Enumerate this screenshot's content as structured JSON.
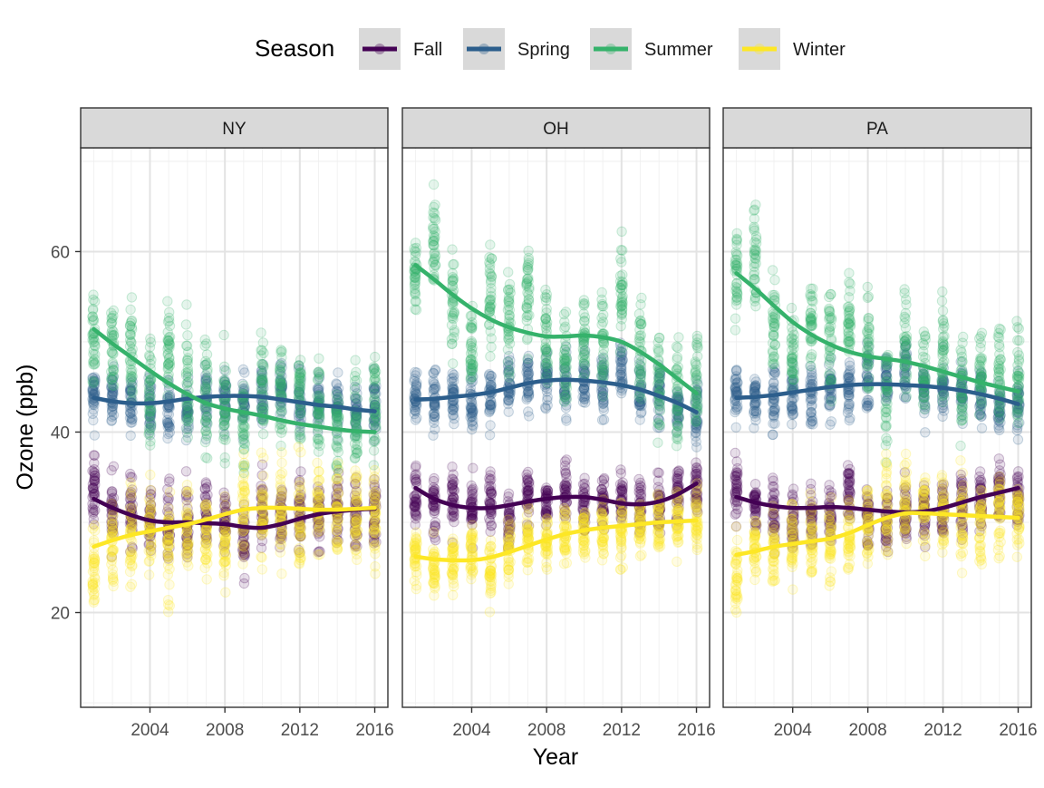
{
  "chart_data": {
    "type": "scatter",
    "facet_by": "State",
    "facets": [
      "NY",
      "OH",
      "PA"
    ],
    "xlabel": "Year",
    "ylabel": "Ozone (ppb)",
    "xlim": [
      2000.3,
      2016.7
    ],
    "ylim": [
      9.5,
      71.5
    ],
    "x_ticks": [
      2004,
      2008,
      2012,
      2016
    ],
    "y_ticks": [
      20,
      40,
      60
    ],
    "grid": true,
    "legend": {
      "title": "Season",
      "position": "top",
      "entries": [
        "Fall",
        "Spring",
        "Summer",
        "Winter"
      ]
    },
    "colors": {
      "Fall": "#440154",
      "Spring": "#2c5e8c",
      "Summer": "#35b26b",
      "Winter": "#fde725"
    },
    "series": [
      {
        "facet": "NY",
        "name": "Fall",
        "x": [
          2001,
          2002,
          2003,
          2004,
          2005,
          2006,
          2007,
          2008,
          2009,
          2010,
          2011,
          2012,
          2013,
          2014,
          2015,
          2016
        ],
        "mean": [
          33.5,
          31.5,
          31.0,
          30.0,
          30.5,
          30.0,
          31.0,
          30.5,
          28.0,
          30.5,
          30.0,
          31.5,
          30.5,
          31.0,
          31.0,
          31.0
        ],
        "spread": 3.5,
        "smooth": [
          32.6,
          31.6,
          30.8,
          30.2,
          30.0,
          30.0,
          29.9,
          29.8,
          29.5,
          29.4,
          29.8,
          30.4,
          30.9,
          31.2,
          31.4,
          31.5
        ]
      },
      {
        "facet": "NY",
        "name": "Spring",
        "x": [
          2001,
          2002,
          2003,
          2004,
          2005,
          2006,
          2007,
          2008,
          2009,
          2010,
          2011,
          2012,
          2013,
          2014,
          2015,
          2016
        ],
        "mean": [
          44.0,
          43.5,
          43.5,
          42.5,
          43.0,
          42.0,
          44.0,
          43.5,
          43.5,
          44.0,
          44.5,
          43.5,
          43.0,
          42.5,
          42.0,
          42.5
        ],
        "spread": 3.0,
        "smooth": [
          43.8,
          43.4,
          43.2,
          43.2,
          43.4,
          43.7,
          43.9,
          44.0,
          44.0,
          43.9,
          43.6,
          43.3,
          43.0,
          42.8,
          42.5,
          42.3
        ]
      },
      {
        "facet": "NY",
        "name": "Summer",
        "x": [
          2001,
          2002,
          2003,
          2004,
          2005,
          2006,
          2007,
          2008,
          2009,
          2010,
          2011,
          2012,
          2013,
          2014,
          2015,
          2016
        ],
        "mean": [
          50.0,
          50.0,
          48.5,
          44.0,
          49.0,
          46.0,
          44.0,
          43.0,
          41.0,
          45.0,
          44.0,
          44.0,
          43.0,
          40.0,
          42.0,
          43.0
        ],
        "spread": 5.0,
        "smooth": [
          51.4,
          49.8,
          48.3,
          46.8,
          45.4,
          44.2,
          43.2,
          42.6,
          42.2,
          41.8,
          41.3,
          40.9,
          40.6,
          40.3,
          40.1,
          40.0
        ]
      },
      {
        "facet": "NY",
        "name": "Winter",
        "x": [
          2001,
          2002,
          2003,
          2004,
          2005,
          2006,
          2007,
          2008,
          2009,
          2010,
          2011,
          2012,
          2013,
          2014,
          2015,
          2016
        ],
        "mean": [
          25.0,
          27.0,
          28.5,
          29.0,
          27.0,
          29.0,
          28.5,
          28.5,
          32.0,
          31.0,
          31.0,
          30.5,
          31.5,
          31.0,
          31.5,
          31.0
        ],
        "spread": 5.0,
        "smooth": [
          27.3,
          28.0,
          28.6,
          29.0,
          29.4,
          29.8,
          30.3,
          30.9,
          31.4,
          31.6,
          31.6,
          31.5,
          31.4,
          31.4,
          31.5,
          31.6
        ]
      },
      {
        "facet": "OH",
        "name": "Fall",
        "x": [
          2001,
          2002,
          2003,
          2004,
          2005,
          2006,
          2007,
          2008,
          2009,
          2010,
          2011,
          2012,
          2013,
          2014,
          2015,
          2016
        ],
        "mean": [
          33.0,
          32.0,
          32.5,
          31.5,
          32.0,
          30.0,
          32.5,
          32.0,
          34.0,
          32.0,
          32.5,
          32.5,
          31.5,
          32.0,
          33.0,
          34.0
        ],
        "spread": 3.0,
        "smooth": [
          33.8,
          32.6,
          31.9,
          31.6,
          31.6,
          31.9,
          32.3,
          32.6,
          32.8,
          32.8,
          32.5,
          32.1,
          32.0,
          32.3,
          33.1,
          34.3
        ]
      },
      {
        "facet": "OH",
        "name": "Spring",
        "x": [
          2001,
          2002,
          2003,
          2004,
          2005,
          2006,
          2007,
          2008,
          2009,
          2010,
          2011,
          2012,
          2013,
          2014,
          2015,
          2016
        ],
        "mean": [
          44.0,
          43.5,
          44.0,
          43.5,
          44.0,
          45.0,
          45.5,
          46.0,
          45.0,
          46.0,
          45.0,
          47.0,
          44.5,
          44.0,
          43.0,
          42.5
        ],
        "spread": 3.0,
        "smooth": [
          43.6,
          43.7,
          43.9,
          44.1,
          44.4,
          44.9,
          45.4,
          45.7,
          45.8,
          45.7,
          45.5,
          45.2,
          44.7,
          44.0,
          43.2,
          42.2
        ]
      },
      {
        "facet": "OH",
        "name": "Summer",
        "x": [
          2001,
          2002,
          2003,
          2004,
          2005,
          2006,
          2007,
          2008,
          2009,
          2010,
          2011,
          2012,
          2013,
          2014,
          2015,
          2016
        ],
        "mean": [
          57.5,
          61.0,
          54.0,
          49.0,
          55.0,
          52.0,
          55.0,
          50.5,
          48.0,
          51.0,
          50.0,
          56.0,
          48.5,
          45.0,
          45.0,
          46.0
        ],
        "spread": 5.0,
        "smooth": [
          58.5,
          56.9,
          55.2,
          53.7,
          52.5,
          51.6,
          51.0,
          50.6,
          50.6,
          50.7,
          50.5,
          50.0,
          48.9,
          47.5,
          45.9,
          44.3
        ]
      },
      {
        "facet": "OH",
        "name": "Winter",
        "x": [
          2001,
          2002,
          2003,
          2004,
          2005,
          2006,
          2007,
          2008,
          2009,
          2010,
          2011,
          2012,
          2013,
          2014,
          2015,
          2016
        ],
        "mean": [
          26.0,
          25.5,
          26.0,
          26.5,
          24.5,
          27.0,
          28.0,
          28.0,
          28.5,
          29.0,
          29.0,
          28.5,
          29.5,
          30.0,
          30.0,
          30.5
        ],
        "spread": 3.0,
        "smooth": [
          26.2,
          25.9,
          25.8,
          25.8,
          26.1,
          26.7,
          27.4,
          28.1,
          28.7,
          29.1,
          29.4,
          29.6,
          29.8,
          30.0,
          30.1,
          30.2
        ]
      },
      {
        "facet": "PA",
        "name": "Fall",
        "x": [
          2001,
          2002,
          2003,
          2004,
          2005,
          2006,
          2007,
          2008,
          2009,
          2010,
          2011,
          2012,
          2013,
          2014,
          2015,
          2016
        ],
        "mean": [
          33.5,
          32.0,
          31.0,
          30.5,
          30.5,
          30.5,
          33.5,
          30.5,
          30.0,
          31.0,
          31.0,
          31.5,
          32.5,
          32.0,
          33.0,
          33.0
        ],
        "spread": 3.0,
        "smooth": [
          32.8,
          32.2,
          31.8,
          31.6,
          31.6,
          31.7,
          31.6,
          31.4,
          31.2,
          31.1,
          31.2,
          31.6,
          32.2,
          32.8,
          33.3,
          33.8
        ]
      },
      {
        "facet": "PA",
        "name": "Spring",
        "x": [
          2001,
          2002,
          2003,
          2004,
          2005,
          2006,
          2007,
          2008,
          2009,
          2010,
          2011,
          2012,
          2013,
          2014,
          2015,
          2016
        ],
        "mean": [
          44.0,
          43.5,
          43.5,
          44.0,
          44.0,
          44.5,
          45.0,
          45.5,
          46.0,
          47.5,
          44.5,
          45.0,
          44.5,
          44.0,
          43.0,
          43.0
        ],
        "spread": 3.0,
        "smooth": [
          43.8,
          43.9,
          44.1,
          44.4,
          44.7,
          45.0,
          45.2,
          45.3,
          45.3,
          45.2,
          45.1,
          44.9,
          44.6,
          44.2,
          43.7,
          43.1
        ]
      },
      {
        "facet": "PA",
        "name": "Summer",
        "x": [
          2001,
          2002,
          2003,
          2004,
          2005,
          2006,
          2007,
          2008,
          2009,
          2010,
          2011,
          2012,
          2013,
          2014,
          2015,
          2016
        ],
        "mean": [
          57.0,
          60.0,
          52.0,
          49.0,
          52.0,
          50.0,
          52.0,
          50.0,
          45.0,
          50.0,
          47.0,
          49.0,
          45.0,
          46.0,
          46.0,
          46.0
        ],
        "spread": 5.0,
        "smooth": [
          57.6,
          55.9,
          54.0,
          52.2,
          50.8,
          49.7,
          48.9,
          48.4,
          48.1,
          47.8,
          47.3,
          46.7,
          46.1,
          45.5,
          45.0,
          44.5
        ]
      },
      {
        "facet": "PA",
        "name": "Winter",
        "x": [
          2001,
          2002,
          2003,
          2004,
          2005,
          2006,
          2007,
          2008,
          2009,
          2010,
          2011,
          2012,
          2013,
          2014,
          2015,
          2016
        ],
        "mean": [
          24.0,
          27.0,
          27.0,
          28.0,
          28.0,
          27.5,
          28.5,
          30.0,
          31.5,
          32.0,
          31.0,
          31.0,
          30.5,
          30.0,
          31.0,
          30.5
        ],
        "spread": 4.0,
        "smooth": [
          26.4,
          26.8,
          27.3,
          27.6,
          27.9,
          28.2,
          28.8,
          29.7,
          30.5,
          31.0,
          31.0,
          30.9,
          30.8,
          30.7,
          30.6,
          30.5
        ]
      }
    ]
  }
}
